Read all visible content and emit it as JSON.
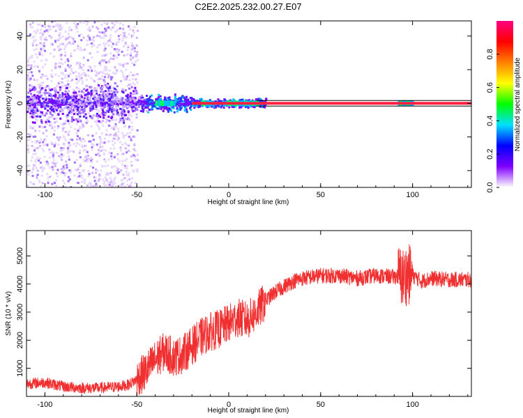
{
  "figure": {
    "title": "C2E2.2025.232.00.27.E07"
  },
  "chart_data": [
    {
      "type": "heatmap",
      "xlabel": "Height of straight line (km)",
      "ylabel": "Frequency (Hz)",
      "xlim": [
        -110,
        132
      ],
      "ylim": [
        -50,
        49
      ],
      "xticks": [
        -100,
        -50,
        0,
        50,
        100
      ],
      "xtick_labels": [
        "-100",
        "-50",
        "0",
        "50",
        "100"
      ],
      "yticks": [
        -40,
        -20,
        0,
        20,
        40
      ],
      "ytick_labels": [
        "-40",
        "-20",
        "0",
        "20",
        "40"
      ],
      "band_center_hz": 0,
      "carrier_line_x_start": 15,
      "bright_segments_km": [
        [
          -40,
          -30
        ],
        [
          -15,
          -10
        ],
        [
          -2,
          15
        ],
        [
          92,
          100
        ]
      ],
      "colorbar": {
        "label": "Normalized spectral amplitude",
        "range": [
          0,
          1
        ],
        "ticks": [
          0.0,
          0.2,
          0.4,
          0.6,
          0.8
        ],
        "tick_labels": [
          "0.0",
          "0.2",
          "0.4",
          "0.6",
          "0.8"
        ],
        "colors": [
          "#ffffff",
          "#8000ff",
          "#0000ff",
          "#00e0ff",
          "#00ff00",
          "#ffff00",
          "#ff8000",
          "#ff0000",
          "#ff0080"
        ]
      },
      "grid": false
    },
    {
      "type": "line",
      "xlabel": "Height of straight line (km)",
      "ylabel": "SNR (10 * v/v)",
      "xlim": [
        -110,
        132
      ],
      "ylim": [
        0,
        5900
      ],
      "xticks": [
        -100,
        -50,
        0,
        50,
        100
      ],
      "xtick_labels": [
        "-100",
        "-50",
        "0",
        "50",
        "100"
      ],
      "yticks": [
        1000,
        2000,
        3000,
        4000,
        5000
      ],
      "ytick_labels": [
        "1000",
        "2000",
        "3000",
        "4000",
        "5000"
      ],
      "color": "#f03030",
      "grid": false,
      "series": [
        {
          "x": [
            -110,
            -100,
            -90,
            -80,
            -70,
            -60,
            -55,
            -50,
            -45,
            -40,
            -35,
            -30,
            -25,
            -20,
            -15,
            -10,
            -5,
            0,
            5,
            10,
            15,
            20,
            25,
            30,
            35,
            40,
            50,
            60,
            70,
            80,
            90,
            93,
            95,
            97,
            100,
            105,
            110,
            120,
            132
          ],
          "y": [
            450,
            500,
            350,
            300,
            300,
            350,
            400,
            600,
            900,
            1300,
            1600,
            1400,
            1500,
            1800,
            2100,
            2300,
            2400,
            2600,
            2800,
            2700,
            3000,
            3400,
            3700,
            3900,
            4100,
            4200,
            4300,
            4300,
            4200,
            4300,
            4250,
            4300,
            4200,
            4350,
            4300,
            4100,
            4200,
            4150,
            4150
          ]
        }
      ]
    }
  ]
}
